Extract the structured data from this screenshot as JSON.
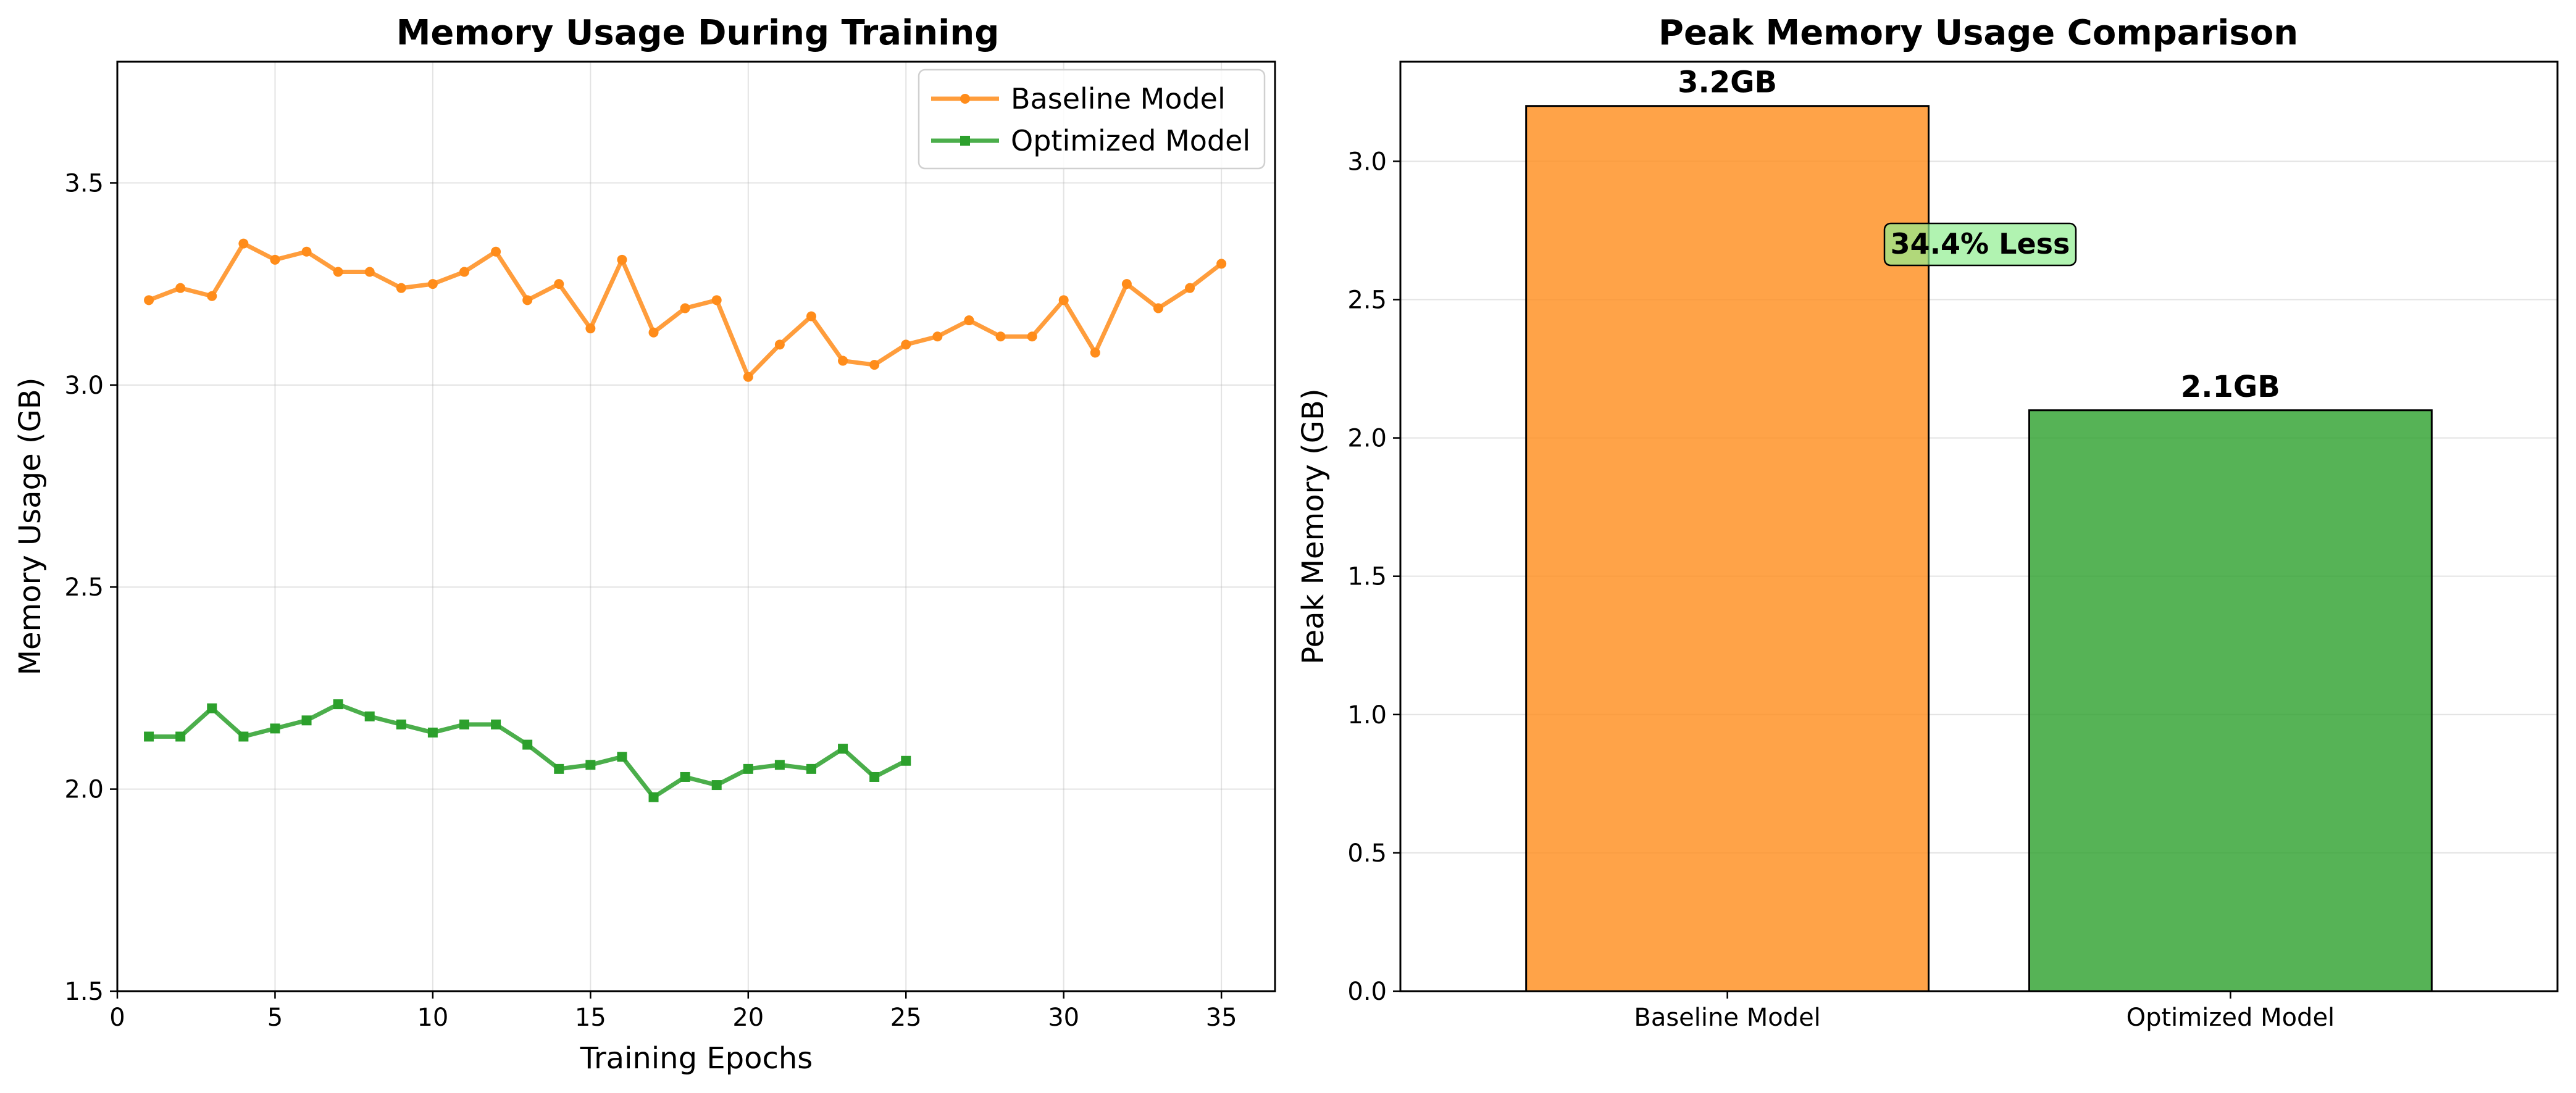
{
  "chart_data": [
    {
      "type": "line",
      "title": "Memory Usage During Training",
      "xlabel": "Training Epochs",
      "ylabel": "Memory Usage (GB)",
      "xlim": [
        0,
        36.7
      ],
      "ylim": [
        1.5,
        3.8
      ],
      "xticks": [
        0,
        5,
        10,
        15,
        20,
        25,
        30,
        35
      ],
      "yticks": [
        1.5,
        2.0,
        2.5,
        3.0,
        3.5
      ],
      "grid": true,
      "legend_position": "top-right",
      "series": [
        {
          "name": "Baseline Model",
          "color": "#ff8c1a",
          "marker": "circle",
          "x": [
            1,
            2,
            3,
            4,
            5,
            6,
            7,
            8,
            9,
            10,
            11,
            12,
            13,
            14,
            15,
            16,
            17,
            18,
            19,
            20,
            21,
            22,
            23,
            24,
            25,
            26,
            27,
            28,
            29,
            30,
            31,
            32,
            33,
            34,
            35
          ],
          "y": [
            3.21,
            3.24,
            3.22,
            3.35,
            3.31,
            3.33,
            3.28,
            3.28,
            3.24,
            3.25,
            3.28,
            3.33,
            3.21,
            3.25,
            3.14,
            3.31,
            3.13,
            3.19,
            3.21,
            3.02,
            3.1,
            3.17,
            3.06,
            3.05,
            3.1,
            3.12,
            3.16,
            3.12,
            3.12,
            3.21,
            3.08,
            3.25,
            3.19,
            3.24,
            3.3
          ]
        },
        {
          "name": "Optimized Model",
          "color": "#2ca02c",
          "marker": "square",
          "x": [
            1,
            2,
            3,
            4,
            5,
            6,
            7,
            8,
            9,
            10,
            11,
            12,
            13,
            14,
            15,
            16,
            17,
            18,
            19,
            20,
            21,
            22,
            23,
            24,
            25
          ],
          "y": [
            2.13,
            2.13,
            2.2,
            2.13,
            2.15,
            2.17,
            2.21,
            2.18,
            2.16,
            2.14,
            2.16,
            2.16,
            2.11,
            2.05,
            2.06,
            2.08,
            1.98,
            2.03,
            2.01,
            2.05,
            2.06,
            2.05,
            2.1,
            2.03,
            2.07
          ]
        }
      ]
    },
    {
      "type": "bar",
      "title": "Peak Memory Usage Comparison",
      "xlabel": "",
      "ylabel": "Peak Memory (GB)",
      "ylim": [
        0,
        3.36
      ],
      "yticks": [
        0.0,
        0.5,
        1.0,
        1.5,
        2.0,
        2.5,
        3.0
      ],
      "grid": true,
      "categories": [
        "Baseline Model",
        "Optimized Model"
      ],
      "values": [
        3.2,
        2.1
      ],
      "colors": [
        "#ff8c1a",
        "#2ca02c"
      ],
      "data_labels": [
        "3.2GB",
        "2.1GB"
      ],
      "annotation": {
        "text": "34.4% Less",
        "x": 0.5,
        "y": 2.7,
        "box_color": "#90ee90"
      }
    }
  ]
}
